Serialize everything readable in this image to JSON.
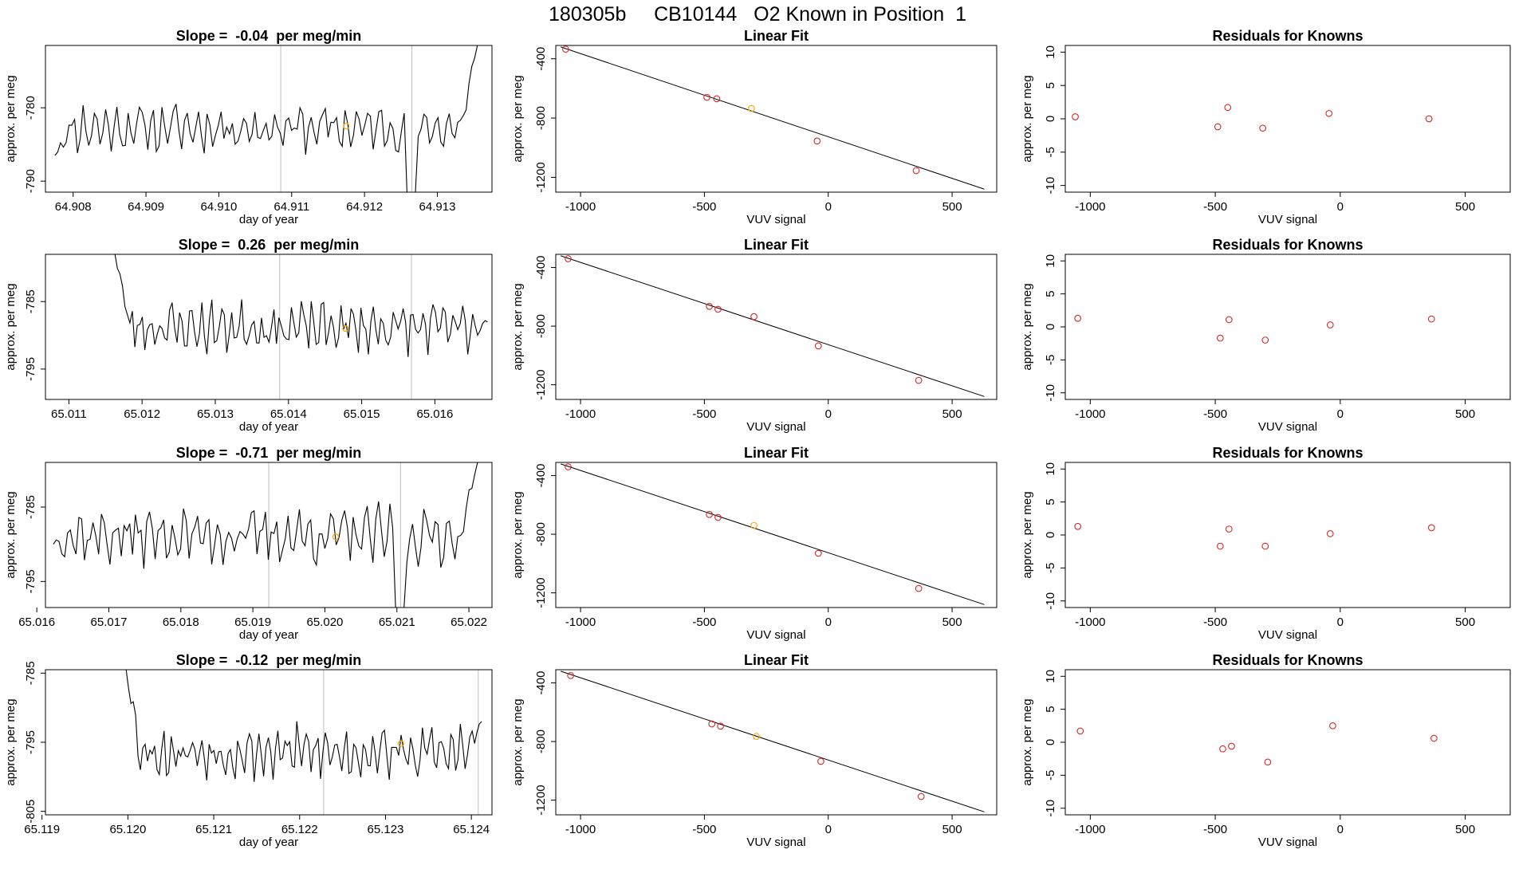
{
  "main_title": "180305b     CB10144   O2 Known in Position  1",
  "colors": {
    "axis": "#000000",
    "series": "#000000",
    "vline": "#bebebe",
    "current_point": "#ffa500",
    "residual_point": "#d62728"
  },
  "labels": {
    "slope_prefix": "Slope =  ",
    "slope_suffix": "  per meg/min",
    "fit_title": "Linear Fit",
    "res_title": "Residuals for Knowns",
    "xlab_time": "day of year",
    "xlab_vuv": "VUV signal",
    "ylab": "approx. per meg"
  },
  "chart_data": [
    {
      "row": 1,
      "time": {
        "type": "line",
        "slope": "-0.04",
        "xlim": [
          64.90762,
          64.91375
        ],
        "ylim": [
          -791.5,
          -771.5
        ],
        "xticks": [
          "64.908",
          "64.909",
          "64.910",
          "64.911",
          "64.912",
          "64.913"
        ],
        "yticks": [
          "-790",
          "-780"
        ],
        "series_start": 64.90775,
        "series_end": 64.91355,
        "base": -782.7,
        "amp": 2.3,
        "seed": 11,
        "start_y": -786.5,
        "end_y": -771.5,
        "dip_x": 64.91265,
        "dip_y": -791.5,
        "vlines": [
          64.91085,
          64.91265
        ],
        "point": {
          "x": 64.91175,
          "y": -782.5
        }
      },
      "fit": {
        "type": "scatter",
        "xlim": [
          -1100,
          680
        ],
        "ylim": [
          -1300,
          -310
        ],
        "xticks": [
          -1000,
          -500,
          0,
          500
        ],
        "yticks": [
          -400,
          -800,
          -1200
        ],
        "points": [
          [
            -1060,
            -335
          ],
          [
            -490,
            -660
          ],
          [
            -450,
            -670
          ],
          [
            -310,
            -735
          ],
          [
            -45,
            -955
          ],
          [
            355,
            -1155
          ]
        ],
        "highlight": 3,
        "line": {
          "x0": -1080,
          "y0": -320,
          "x1": 630,
          "y1": -1280
        }
      },
      "residuals": {
        "type": "scatter",
        "xlim": [
          -1100,
          680
        ],
        "ylim": [
          -11,
          11
        ],
        "xticks": [
          -1000,
          -500,
          0,
          500
        ],
        "yticks": [
          10,
          5,
          0,
          -5,
          -10
        ],
        "points": [
          [
            -1060,
            0.3
          ],
          [
            -490,
            -1.2
          ],
          [
            -450,
            1.7
          ],
          [
            -310,
            -1.4
          ],
          [
            -45,
            0.8
          ],
          [
            355,
            0.0
          ]
        ]
      }
    },
    {
      "row": 2,
      "time": {
        "type": "line",
        "slope": "0.26",
        "xlim": [
          65.01068,
          65.01678
        ],
        "ylim": [
          -799.5,
          -778.0
        ],
        "xticks": [
          "65.011",
          "65.012",
          "65.013",
          "65.014",
          "65.015",
          "65.016"
        ],
        "yticks": [
          "-795",
          "-785"
        ],
        "series_start": 65.01163,
        "series_end": 65.01672,
        "base": -788.8,
        "amp": 2.6,
        "seed": 23,
        "start_y": -778.0,
        "end_y": -788.0,
        "dip_x": null,
        "dip_y": null,
        "vlines": [
          65.01388,
          65.01568
        ],
        "point": {
          "x": 65.01478,
          "y": -789.0
        }
      },
      "fit": {
        "type": "scatter",
        "xlim": [
          -1100,
          680
        ],
        "ylim": [
          -1300,
          -310
        ],
        "xticks": [
          -1000,
          -500,
          0,
          500
        ],
        "yticks": [
          -400,
          -800,
          -1200
        ],
        "points": [
          [
            -1050,
            -340
          ],
          [
            -480,
            -665
          ],
          [
            -445,
            -685
          ],
          [
            -300,
            -735
          ],
          [
            -40,
            -935
          ],
          [
            365,
            -1170
          ]
        ],
        "highlight": null,
        "line": {
          "x0": -1080,
          "y0": -320,
          "x1": 630,
          "y1": -1280
        }
      },
      "residuals": {
        "type": "scatter",
        "xlim": [
          -1100,
          680
        ],
        "ylim": [
          -11,
          11
        ],
        "xticks": [
          -1000,
          -500,
          0,
          500
        ],
        "yticks": [
          10,
          5,
          0,
          -5,
          -10
        ],
        "points": [
          [
            -1050,
            1.3
          ],
          [
            -480,
            -1.7
          ],
          [
            -445,
            1.1
          ],
          [
            -300,
            -2.0
          ],
          [
            -40,
            0.3
          ],
          [
            365,
            1.2
          ]
        ]
      }
    },
    {
      "row": 3,
      "time": {
        "type": "line",
        "slope": "-0.71",
        "xlim": [
          65.01612,
          65.02232
        ],
        "ylim": [
          -798.5,
          -779.0
        ],
        "xticks": [
          "65.016",
          "65.017",
          "65.018",
          "65.019",
          "65.020",
          "65.021",
          "65.022"
        ],
        "yticks": [
          "-795",
          "-785"
        ],
        "series_start": 65.01623,
        "series_end": 65.02212,
        "base": -788.8,
        "amp": 2.7,
        "seed": 37,
        "start_y": -790.0,
        "end_y": -779.0,
        "dip_x": 65.02105,
        "dip_y": -798.5,
        "vlines": [
          65.01922,
          65.02105
        ],
        "point": {
          "x": 65.02015,
          "y": -789.0
        }
      },
      "fit": {
        "type": "scatter",
        "xlim": [
          -1100,
          680
        ],
        "ylim": [
          -1300,
          -310
        ],
        "xticks": [
          -1000,
          -500,
          0,
          500
        ],
        "yticks": [
          -400,
          -800,
          -1200
        ],
        "points": [
          [
            -1050,
            -340
          ],
          [
            -480,
            -665
          ],
          [
            -445,
            -685
          ],
          [
            -300,
            -740
          ],
          [
            -40,
            -930
          ],
          [
            365,
            -1170
          ]
        ],
        "highlight": 3,
        "line": {
          "x0": -1080,
          "y0": -320,
          "x1": 630,
          "y1": -1280
        }
      },
      "residuals": {
        "type": "scatter",
        "xlim": [
          -1100,
          680
        ],
        "ylim": [
          -11,
          11
        ],
        "xticks": [
          -1000,
          -500,
          0,
          500
        ],
        "yticks": [
          10,
          5,
          0,
          -5,
          -10
        ],
        "points": [
          [
            -1050,
            1.3
          ],
          [
            -480,
            -1.7
          ],
          [
            -445,
            0.9
          ],
          [
            -300,
            -1.7
          ],
          [
            -40,
            0.2
          ],
          [
            365,
            1.1
          ]
        ]
      }
    },
    {
      "row": 4,
      "time": {
        "type": "line",
        "slope": "-0.12",
        "xlim": [
          65.11904,
          65.12424
        ],
        "ylim": [
          -805.5,
          -784.5
        ],
        "xticks": [
          "65.119",
          "65.120",
          "65.121",
          "65.122",
          "65.123",
          "65.124"
        ],
        "yticks": [
          "-805",
          "-795",
          "-785"
        ],
        "series_start": 65.11998,
        "series_end": 65.12412,
        "base": -796.4,
        "amp": 2.7,
        "seed": 53,
        "start_y": -784.5,
        "end_y": -792.0,
        "dip_x": null,
        "dip_y": null,
        "vlines": [
          65.12228,
          65.12408
        ],
        "point": {
          "x": 65.12318,
          "y": -795.2
        }
      },
      "fit": {
        "type": "scatter",
        "xlim": [
          -1100,
          680
        ],
        "ylim": [
          -1300,
          -310
        ],
        "xticks": [
          -1000,
          -500,
          0,
          500
        ],
        "yticks": [
          -400,
          -800,
          -1200
        ],
        "points": [
          [
            -1040,
            -350
          ],
          [
            -470,
            -680
          ],
          [
            -435,
            -695
          ],
          [
            -290,
            -765
          ],
          [
            -30,
            -935
          ],
          [
            375,
            -1175
          ]
        ],
        "highlight": 3,
        "line": {
          "x0": -1080,
          "y0": -320,
          "x1": 630,
          "y1": -1280
        }
      },
      "residuals": {
        "type": "scatter",
        "xlim": [
          -1100,
          680
        ],
        "ylim": [
          -11,
          11
        ],
        "xticks": [
          -1000,
          -500,
          0,
          500
        ],
        "yticks": [
          10,
          5,
          0,
          -5,
          -10
        ],
        "points": [
          [
            -1040,
            1.7
          ],
          [
            -470,
            -1.0
          ],
          [
            -435,
            -0.6
          ],
          [
            -290,
            -3.0
          ],
          [
            -30,
            2.5
          ],
          [
            375,
            0.6
          ]
        ]
      }
    }
  ]
}
